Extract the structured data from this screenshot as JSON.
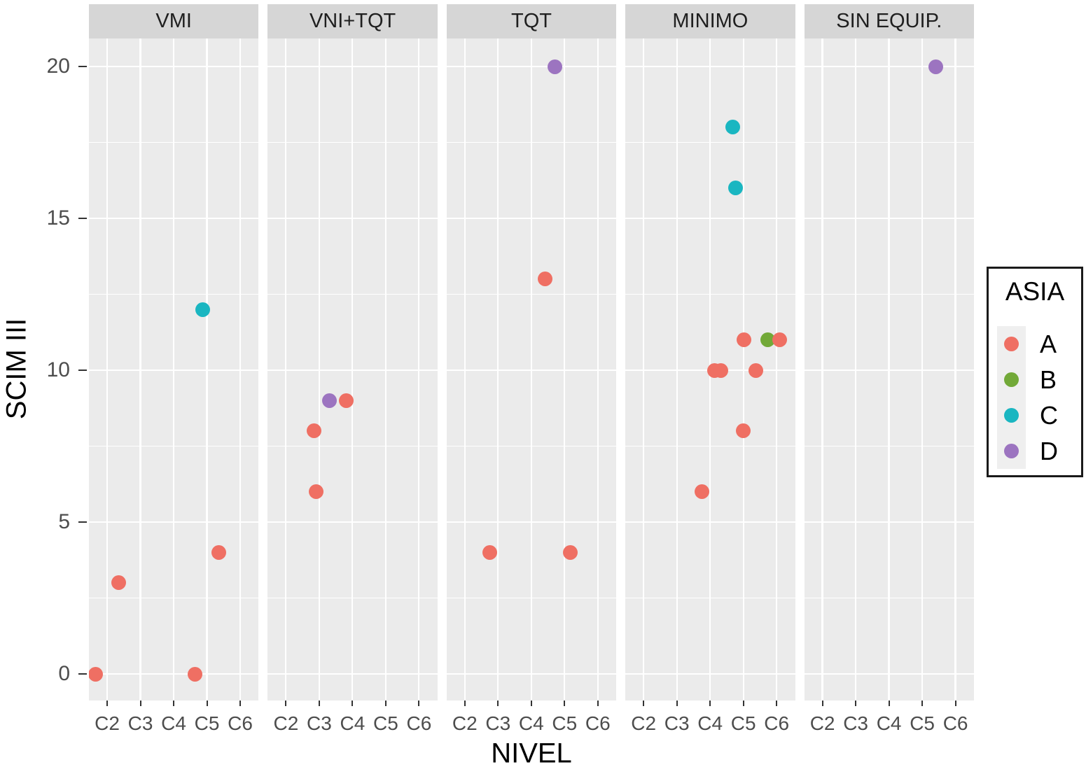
{
  "chart_data": {
    "type": "scatter",
    "xlabel": "NIVEL",
    "ylabel": "SCIM III",
    "facets": [
      "VMI",
      "VNI+TQT",
      "TQT",
      "MINIMO",
      "SIN EQUIP."
    ],
    "x_categories": [
      "C2",
      "C3",
      "C4",
      "C5",
      "C6"
    ],
    "y_ticks": [
      0,
      5,
      10,
      15,
      20
    ],
    "ylim": [
      -1,
      21
    ],
    "grid": "on",
    "legend": {
      "title": "ASIA",
      "position": "right",
      "entries": [
        {
          "label": "A",
          "color": "#EF6F63"
        },
        {
          "label": "B",
          "color": "#72A938"
        },
        {
          "label": "C",
          "color": "#1AB6C1"
        },
        {
          "label": "D",
          "color": "#9C74C0"
        }
      ]
    },
    "points": [
      {
        "facet": "VMI",
        "asia": "A",
        "x": 1.65,
        "y": 0
      },
      {
        "facet": "VMI",
        "asia": "A",
        "x": 2.35,
        "y": 3
      },
      {
        "facet": "VMI",
        "asia": "A",
        "x": 4.65,
        "y": 0
      },
      {
        "facet": "VMI",
        "asia": "C",
        "x": 4.88,
        "y": 12
      },
      {
        "facet": "VMI",
        "asia": "A",
        "x": 5.35,
        "y": 4
      },
      {
        "facet": "VNI+TQT",
        "asia": "A",
        "x": 2.84,
        "y": 8
      },
      {
        "facet": "VNI+TQT",
        "asia": "A",
        "x": 2.9,
        "y": 6
      },
      {
        "facet": "VNI+TQT",
        "asia": "D",
        "x": 3.31,
        "y": 9
      },
      {
        "facet": "VNI+TQT",
        "asia": "A",
        "x": 3.82,
        "y": 9
      },
      {
        "facet": "TQT",
        "asia": "A",
        "x": 2.75,
        "y": 4
      },
      {
        "facet": "TQT",
        "asia": "A",
        "x": 4.41,
        "y": 13
      },
      {
        "facet": "TQT",
        "asia": "D",
        "x": 4.71,
        "y": 20
      },
      {
        "facet": "TQT",
        "asia": "A",
        "x": 5.18,
        "y": 4
      },
      {
        "facet": "MINIMO",
        "asia": "A",
        "x": 3.75,
        "y": 6
      },
      {
        "facet": "MINIMO",
        "asia": "A",
        "x": 4.14,
        "y": 10
      },
      {
        "facet": "MINIMO",
        "asia": "A",
        "x": 4.33,
        "y": 10
      },
      {
        "facet": "MINIMO",
        "asia": "C",
        "x": 4.69,
        "y": 18
      },
      {
        "facet": "MINIMO",
        "asia": "C",
        "x": 4.77,
        "y": 16
      },
      {
        "facet": "MINIMO",
        "asia": "A",
        "x": 5.0,
        "y": 8
      },
      {
        "facet": "MINIMO",
        "asia": "A",
        "x": 5.02,
        "y": 11
      },
      {
        "facet": "MINIMO",
        "asia": "A",
        "x": 5.37,
        "y": 10
      },
      {
        "facet": "MINIMO",
        "asia": "B",
        "x": 5.73,
        "y": 11
      },
      {
        "facet": "MINIMO",
        "asia": "A",
        "x": 6.1,
        "y": 11
      },
      {
        "facet": "SIN EQUIP.",
        "asia": "D",
        "x": 5.4,
        "y": 20
      }
    ],
    "styles": {
      "background": "#FFFFFF",
      "panel_bg": "#EBEBEB",
      "strip_bg": "#D6D6D6",
      "grid": "#FFFFFF",
      "tick_text": "#4D4D4D",
      "tick_mark": "#333333",
      "axis_title_color": "#000000",
      "legend_border": "#1A1A1A",
      "legend_key_bg": "#EFEFEF"
    }
  }
}
